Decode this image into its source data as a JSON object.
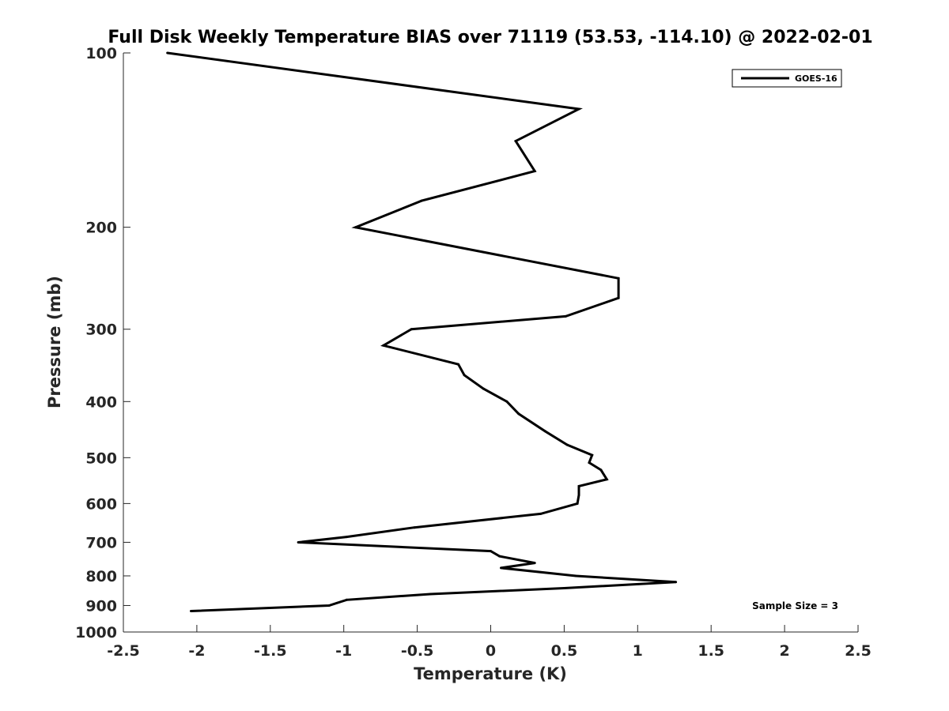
{
  "chart_data": {
    "type": "line",
    "title": "Full Disk Weekly Temperature BIAS over 71119 (53.53, -114.10) @ 2022-02-01",
    "xlabel": "Temperature (K)",
    "ylabel": "Pressure (mb)",
    "xlim": [
      -2.5,
      2.5
    ],
    "ylim": [
      1000,
      100
    ],
    "yscale": "log",
    "grid": false,
    "legend_position": "top-right",
    "x_ticks": [
      {
        "value": -2.5,
        "label": "-2.5"
      },
      {
        "value": -2,
        "label": "-2"
      },
      {
        "value": -1.5,
        "label": "-1.5"
      },
      {
        "value": -1,
        "label": "-1"
      },
      {
        "value": -0.5,
        "label": "-0.5"
      },
      {
        "value": 0,
        "label": "0"
      },
      {
        "value": 0.5,
        "label": "0.5"
      },
      {
        "value": 1,
        "label": "1"
      },
      {
        "value": 1.5,
        "label": "1.5"
      },
      {
        "value": 2,
        "label": "2"
      },
      {
        "value": 2.5,
        "label": "2.5"
      }
    ],
    "y_ticks": [
      {
        "value": 100,
        "label": "100"
      },
      {
        "value": 200,
        "label": "200"
      },
      {
        "value": 300,
        "label": "300"
      },
      {
        "value": 400,
        "label": "400"
      },
      {
        "value": 500,
        "label": "500"
      },
      {
        "value": 600,
        "label": "600"
      },
      {
        "value": 700,
        "label": "700"
      },
      {
        "value": 800,
        "label": "800"
      },
      {
        "value": 900,
        "label": "900"
      },
      {
        "value": 1000,
        "label": "1000"
      }
    ],
    "series": [
      {
        "name": "GOES-16",
        "color": "#000000",
        "x": [
          -2.2,
          0.6,
          0.17,
          0.3,
          -0.47,
          -0.92,
          0.87,
          0.87,
          0.51,
          -0.54,
          -0.73,
          -0.22,
          -0.18,
          -0.05,
          0.11,
          0.19,
          0.37,
          0.52,
          0.69,
          0.67,
          0.75,
          0.79,
          0.6,
          0.6,
          0.59,
          0.34,
          -0.52,
          -0.98,
          -1.31,
          0.0,
          0.06,
          0.3,
          0.07,
          0.58,
          1.26,
          0.5,
          -0.41,
          -0.98,
          -1.1,
          -2.04
        ],
        "y": [
          100,
          125,
          142,
          160,
          180,
          200,
          245,
          265,
          285,
          300,
          320,
          345,
          360,
          380,
          400,
          420,
          450,
          475,
          495,
          510,
          525,
          545,
          560,
          580,
          600,
          625,
          660,
          685,
          700,
          725,
          740,
          760,
          775,
          800,
          820,
          840,
          860,
          880,
          900,
          920
        ]
      }
    ],
    "annotations": [
      "Sample Size = 3"
    ]
  }
}
